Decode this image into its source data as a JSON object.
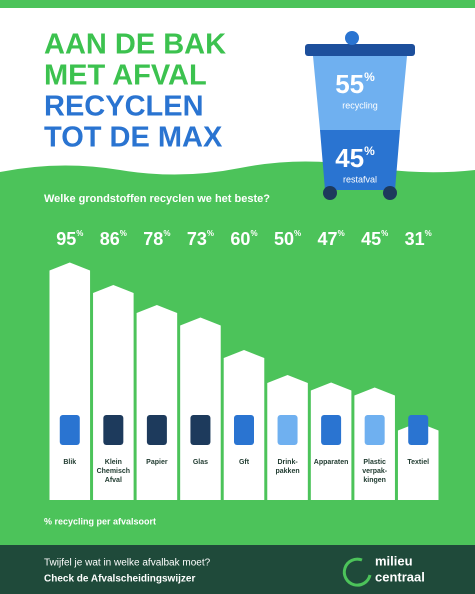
{
  "header": {
    "title_lines": [
      "AAN DE BAK",
      "MET AFVAL",
      "RECYCLEN",
      "TOT DE MAX"
    ]
  },
  "bin": {
    "recycling_value": 55,
    "recycling_label": "recycling",
    "rest_value": 45,
    "rest_label": "restafval"
  },
  "chart_data": {
    "type": "bar",
    "title": "Welke grondstoffen recyclen we het beste?",
    "value_unit": "%",
    "categories": [
      [
        "Blik"
      ],
      [
        "Klein",
        "Chemisch",
        "Afval"
      ],
      [
        "Papier"
      ],
      [
        "Glas"
      ],
      [
        "Gft"
      ],
      [
        "Drink-",
        "pakken"
      ],
      [
        "Apparaten"
      ],
      [
        "Plastic",
        "verpak-",
        "kingen"
      ],
      [
        "Textiel"
      ]
    ],
    "values": [
      95,
      86,
      78,
      73,
      60,
      50,
      47,
      45,
      31
    ],
    "color": "#ffffff",
    "ylim": [
      0,
      100
    ],
    "caption": "% recycling per afvalsoort"
  },
  "footer": {
    "line1": "Twijfel je wat in welke afvalbak moet?",
    "line2": "Check de Afvalscheidingswijzer",
    "logo_line1": "milieu",
    "logo_line2": "centraal"
  }
}
